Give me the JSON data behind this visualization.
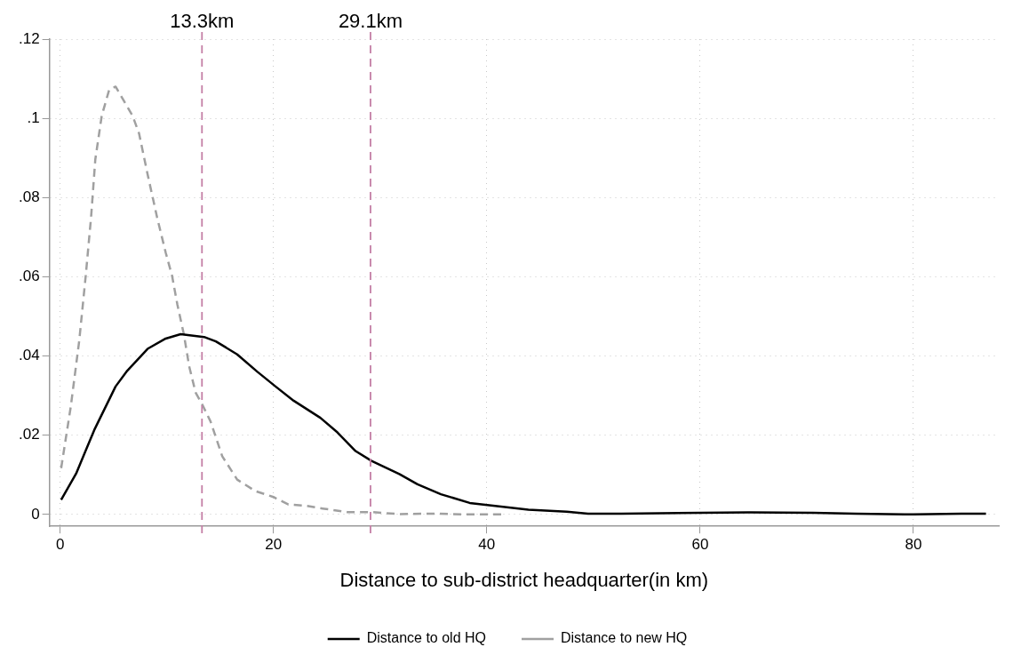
{
  "chart_data": {
    "type": "line",
    "xlabel": "Distance to sub-district headquarter(in km)",
    "xlim": [
      -1,
      88
    ],
    "ylim": [
      -0.003,
      0.12
    ],
    "xticks": [
      0,
      20,
      40,
      60,
      80
    ],
    "yticks": [
      {
        "value": 0,
        "label": "0"
      },
      {
        "value": 0.02,
        "label": ".02"
      },
      {
        "value": 0.04,
        "label": ".04"
      },
      {
        "value": 0.06,
        "label": ".06"
      },
      {
        "value": 0.08,
        "label": ".08"
      },
      {
        "value": 0.1,
        "label": ".1"
      },
      {
        "value": 0.12,
        "label": ".12"
      }
    ],
    "grid": true,
    "legend": "bottom",
    "ref_lines": [
      {
        "axis": "x",
        "value": 13.3,
        "label": "13.3km",
        "color": "#c47fa6",
        "line_style": "dashed"
      },
      {
        "axis": "x",
        "value": 29.1,
        "label": "29.1km",
        "color": "#c47fa6",
        "line_style": "dashed"
      }
    ],
    "series": [
      {
        "name": "Distance to old HQ",
        "color": "#000000",
        "line_style": "solid",
        "x": [
          0.1,
          1.5,
          3.2,
          5.2,
          6.3,
          8.2,
          9.9,
          11.3,
          13.5,
          14.6,
          16.6,
          18.5,
          20.2,
          21.9,
          24.4,
          26,
          27.7,
          29.2,
          31.8,
          33.5,
          35.7,
          38.4,
          40.6,
          43.9,
          47.5,
          49.5,
          52.6,
          60,
          64.6,
          70.6,
          74.6,
          80,
          84.5,
          86.8
        ],
        "values": [
          0.0037,
          0.0103,
          0.0213,
          0.0323,
          0.0363,
          0.0418,
          0.0444,
          0.0455,
          0.0448,
          0.0437,
          0.0404,
          0.036,
          0.0323,
          0.0287,
          0.0244,
          0.0207,
          0.016,
          0.0135,
          0.0102,
          0.0076,
          0.0051,
          0.0029,
          0.0022,
          0.0012,
          0.0007,
          0.0002,
          0.0002,
          0.0004,
          0.0005,
          0.0004,
          0.0002,
          0,
          0.0002,
          0.0002
        ]
      },
      {
        "name": "Distance to new HQ",
        "color": "#a0a0a0",
        "line_style": "dashed",
        "x": [
          0.1,
          1,
          1.8,
          2.4,
          2.9,
          3.3,
          3.9,
          4.6,
          5.2,
          6,
          6.8,
          7.4,
          8.2,
          9.1,
          9.9,
          10.5,
          11,
          11.6,
          12.1,
          12.7,
          13.3,
          14.1,
          15.2,
          16.6,
          18.3,
          20,
          21.4,
          23,
          24.6,
          26.9,
          29.1,
          31.8,
          35.1,
          37.9,
          41.7
        ],
        "values": [
          0.0117,
          0.0272,
          0.044,
          0.0602,
          0.0749,
          0.0896,
          0.1006,
          0.1072,
          0.108,
          0.1043,
          0.1006,
          0.0962,
          0.0859,
          0.0749,
          0.0661,
          0.0602,
          0.0529,
          0.0455,
          0.0374,
          0.0308,
          0.0279,
          0.0235,
          0.0147,
          0.0088,
          0.0059,
          0.0044,
          0.0025,
          0.0022,
          0.0015,
          0.0006,
          0.0006,
          0.0001,
          0.0002,
          0,
          0
        ]
      }
    ]
  }
}
